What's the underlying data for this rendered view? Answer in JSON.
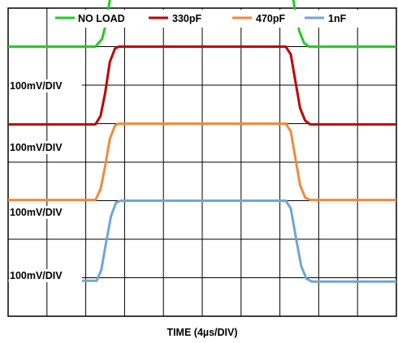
{
  "chart_data": {
    "type": "line",
    "title": "",
    "xlabel": "TIME (4µs/DIV)",
    "ylabel": "",
    "x_divisions": 10,
    "y_divisions": 8,
    "grid": true,
    "legend_position": "top",
    "x_unit": "div",
    "y_unit": "div",
    "volts_per_div_labels": [
      "100mV/DIV",
      "100mV/DIV",
      "100mV/DIV",
      "100mV/DIV"
    ],
    "series": [
      {
        "name": "NO LOAD",
        "color": "#22cc22",
        "x": [
          0,
          2.25,
          2.42,
          2.52,
          2.62,
          2.75,
          2.85,
          7.15,
          7.28,
          7.38,
          7.5,
          7.62,
          7.75,
          10
        ],
        "y": [
          7.0,
          7.0,
          7.2,
          7.6,
          8.2,
          8.75,
          8.88,
          8.88,
          8.6,
          8.0,
          7.4,
          7.1,
          7.0,
          7.0
        ]
      },
      {
        "name": "330pF",
        "color": "#c00000",
        "x": [
          0,
          2.25,
          2.38,
          2.5,
          2.62,
          2.75,
          2.85,
          7.15,
          7.28,
          7.4,
          7.52,
          7.65,
          7.78,
          10
        ],
        "y": [
          4.98,
          4.98,
          5.2,
          5.8,
          6.6,
          6.95,
          7.0,
          7.0,
          6.8,
          6.1,
          5.4,
          5.08,
          4.98,
          4.98
        ]
      },
      {
        "name": "470pF",
        "color": "#f08a3c",
        "x": [
          0,
          2.25,
          2.38,
          2.5,
          2.62,
          2.75,
          2.85,
          7.15,
          7.28,
          7.4,
          7.52,
          7.65,
          7.78,
          10
        ],
        "y": [
          3.02,
          3.02,
          3.3,
          3.9,
          4.6,
          4.95,
          5.0,
          5.0,
          4.8,
          4.1,
          3.4,
          3.08,
          3.02,
          3.02
        ]
      },
      {
        "name": "1nF",
        "color": "#6ea6d8",
        "x": [
          0,
          2.28,
          2.4,
          2.52,
          2.65,
          2.78,
          2.9,
          7.15,
          7.28,
          7.42,
          7.55,
          7.68,
          7.82,
          10
        ],
        "y": [
          0.92,
          0.92,
          1.2,
          1.9,
          2.6,
          2.95,
          3.0,
          3.0,
          2.8,
          2.0,
          1.3,
          0.98,
          0.9,
          0.9
        ]
      }
    ]
  }
}
